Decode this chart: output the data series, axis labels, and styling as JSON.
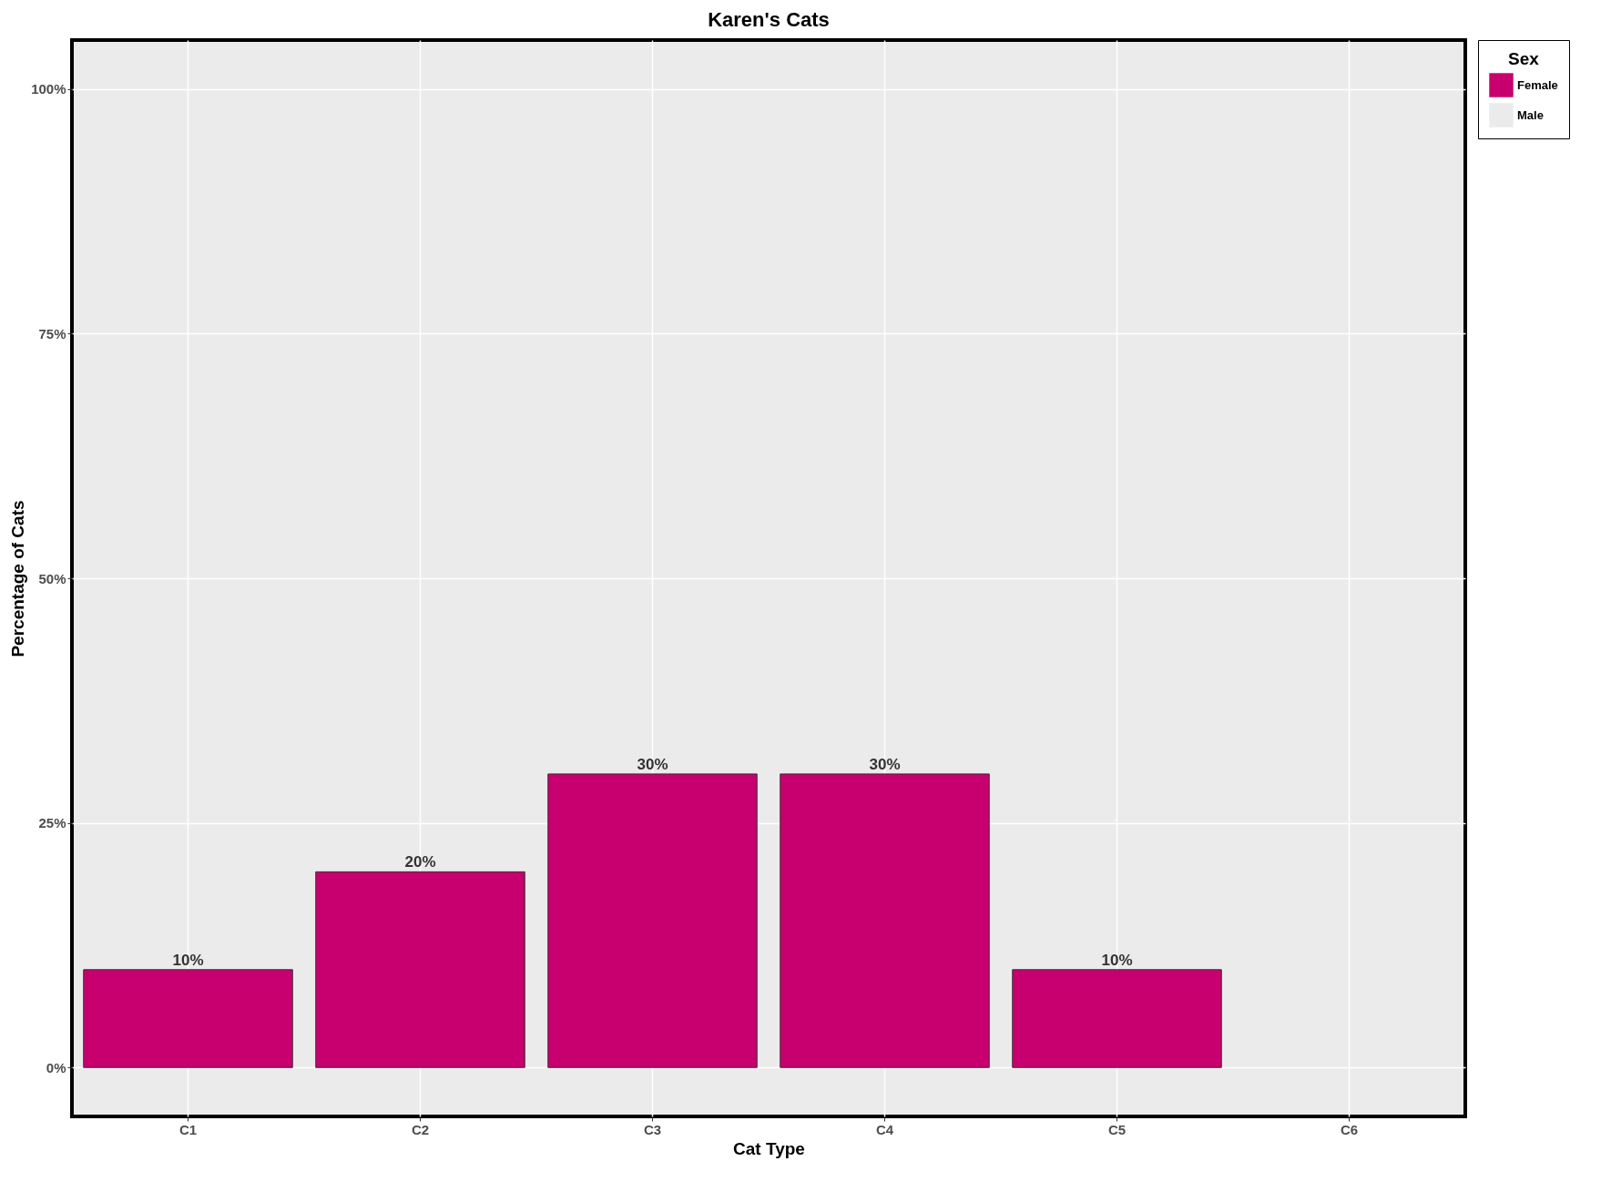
{
  "chart_data": {
    "type": "bar",
    "title": "Karen's Cats",
    "xlabel": "Cat Type",
    "ylabel": "Percentage of Cats",
    "legend_title": "Sex",
    "categories": [
      "C1",
      "C2",
      "C3",
      "C4",
      "C5",
      "C6"
    ],
    "series": [
      {
        "name": "Female",
        "color": "#c8006f",
        "values": [
          10,
          20,
          30,
          30,
          10,
          null
        ],
        "value_labels": [
          "10%",
          "20%",
          "30%",
          "30%",
          "10%",
          null
        ]
      },
      {
        "name": "Male",
        "color": "#ebebeb",
        "values": [
          null,
          null,
          null,
          null,
          null,
          null
        ]
      }
    ],
    "ylim": [
      -5,
      105
    ],
    "yticks": [
      {
        "value": 0,
        "label": "0%"
      },
      {
        "value": 25,
        "label": "25%"
      },
      {
        "value": 50,
        "label": "50%"
      },
      {
        "value": 75,
        "label": "75%"
      },
      {
        "value": 100,
        "label": "100%"
      }
    ],
    "grid": true,
    "legend": "right"
  }
}
